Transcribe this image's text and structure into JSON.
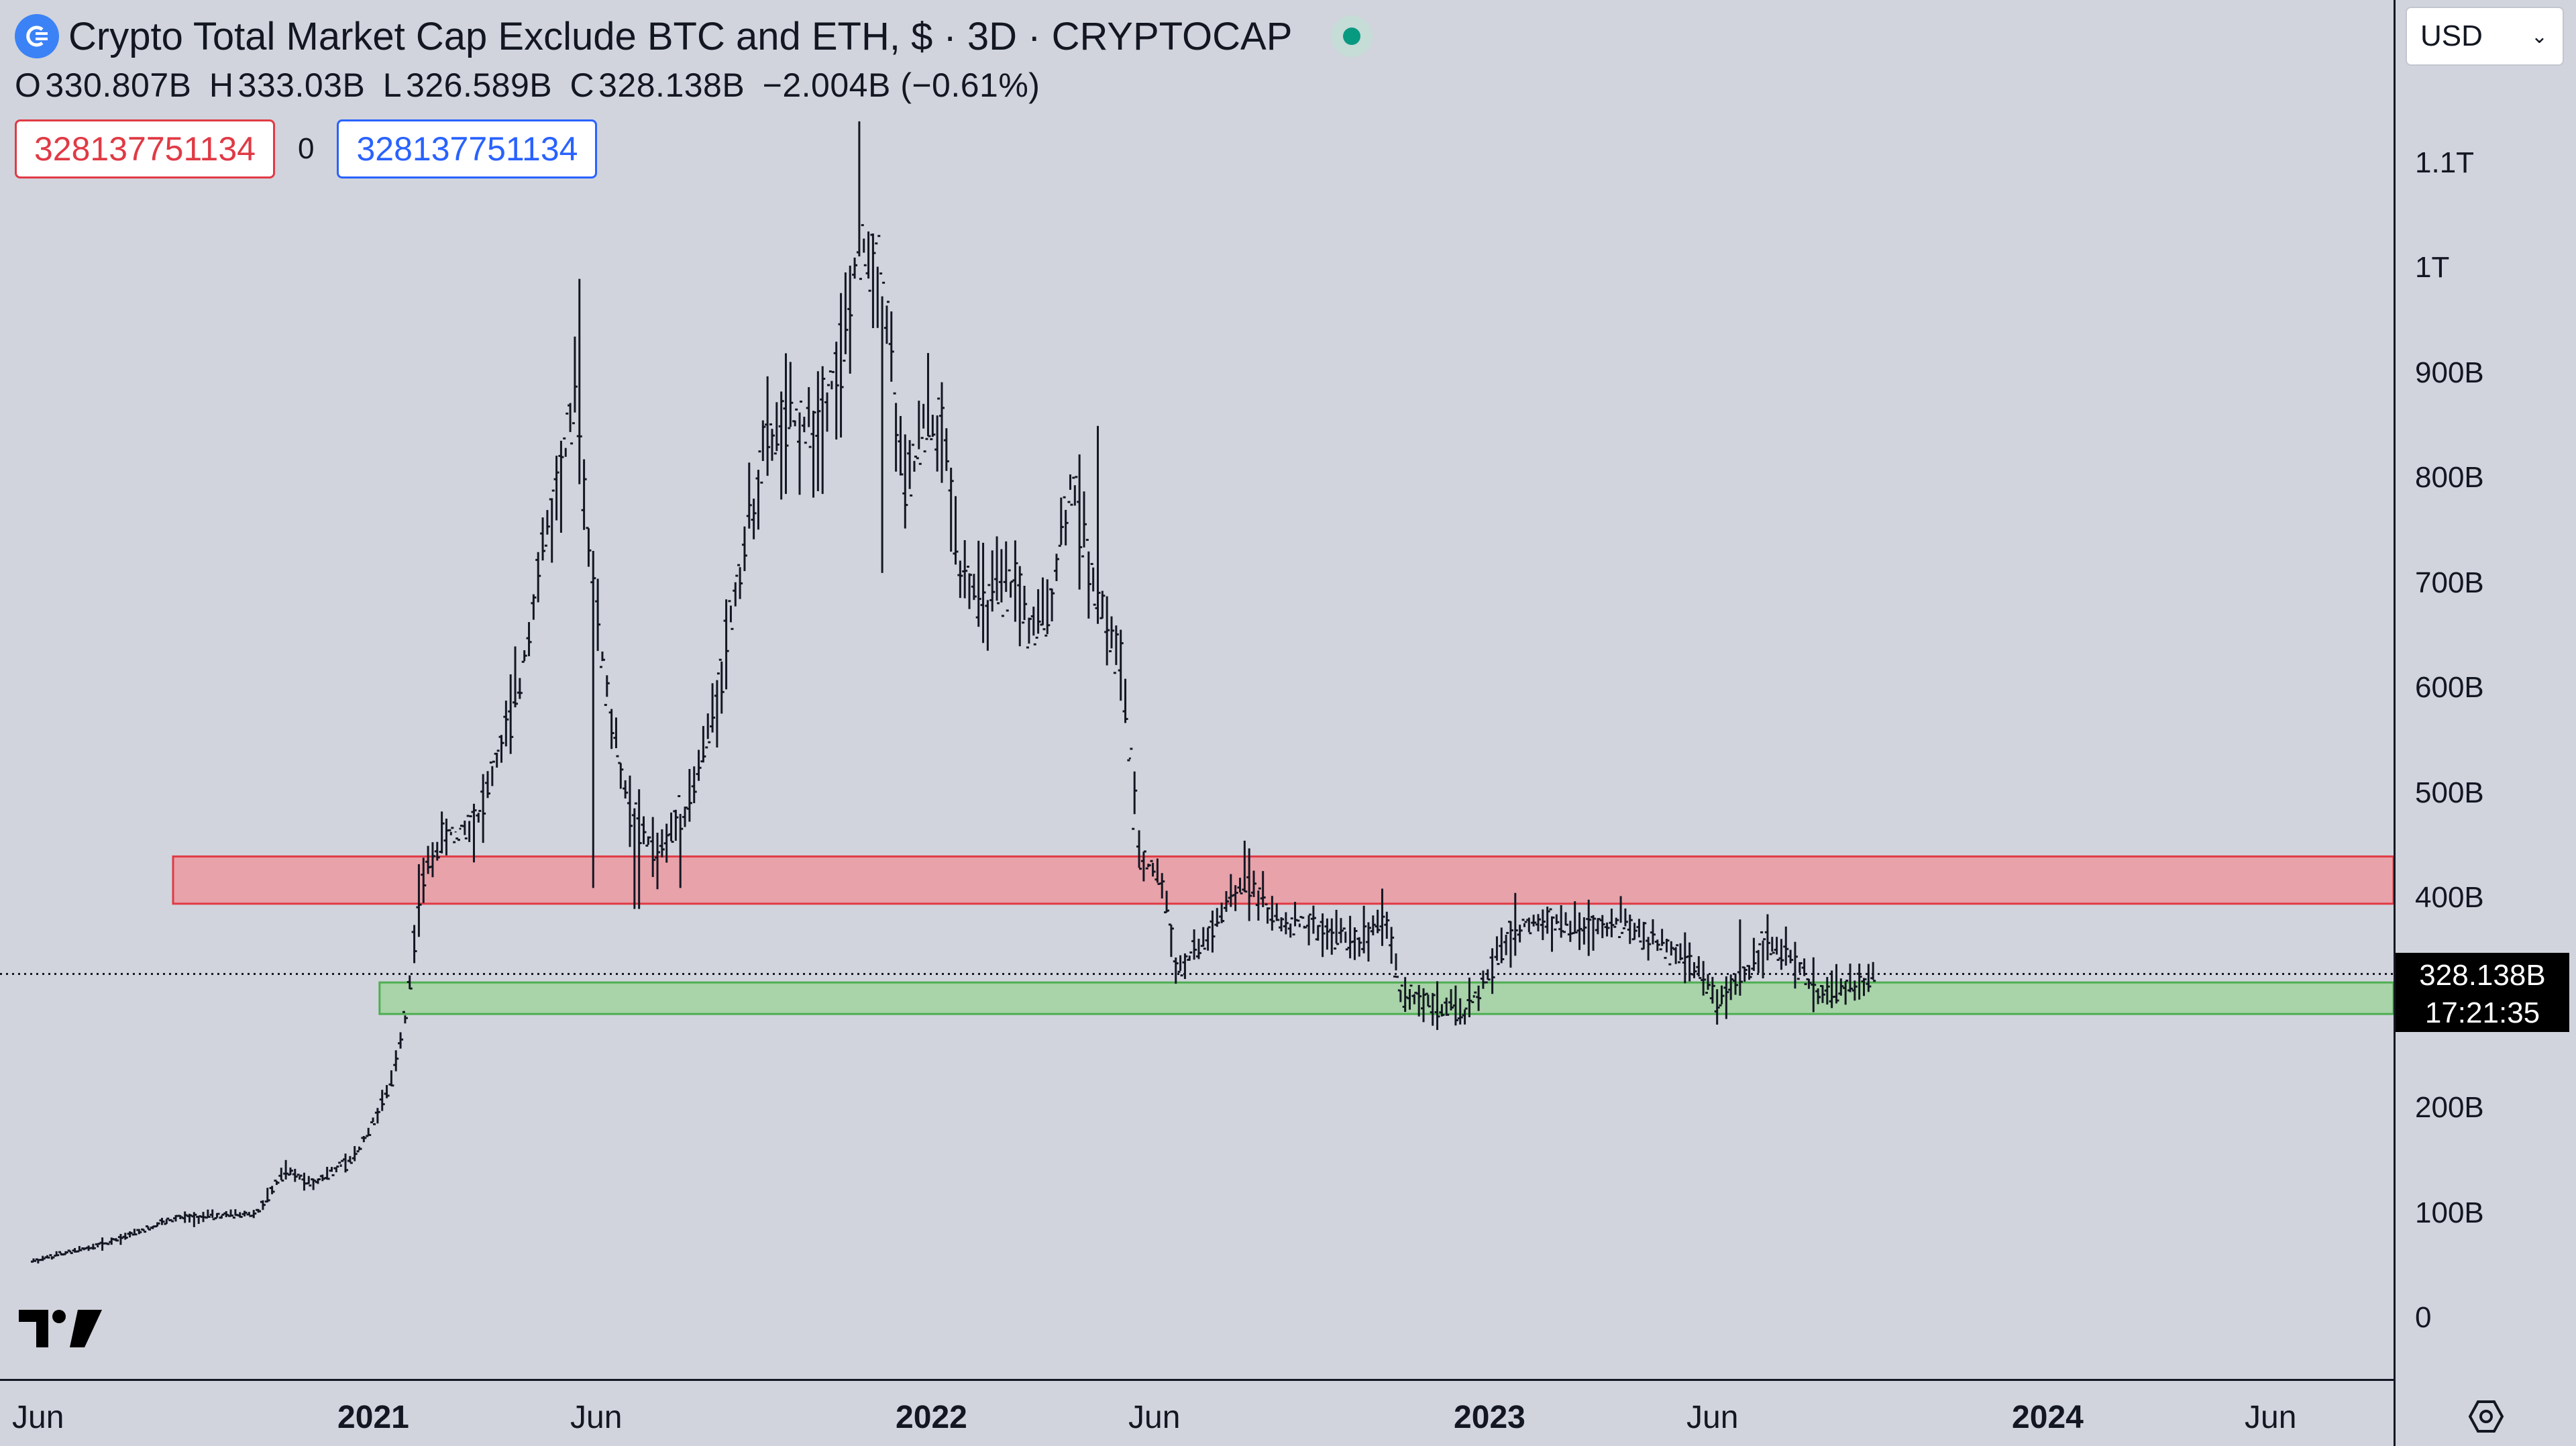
{
  "header": {
    "title": "Crypto Total Market Cap Exclude BTC and ETH, $ · 3D · CRYPTOCAP",
    "ohlc": [
      {
        "key": "O",
        "value": "330.807B"
      },
      {
        "key": "H",
        "value": "333.03B"
      },
      {
        "key": "L",
        "value": "326.589B"
      },
      {
        "key": "C",
        "value": "328.138B"
      }
    ],
    "change": "−2.004B (−0.61%)",
    "input_left": "328137751134",
    "input_sep": "0",
    "input_right": "328137751134"
  },
  "currency": {
    "selected": "USD"
  },
  "price_tag": {
    "price": "328.138B",
    "countdown": "17:21:35"
  },
  "colors": {
    "background": "#d1d4dc",
    "resistance_zone": "#e8a2aa",
    "support_zone": "#a9d3a9",
    "candle": "#131722",
    "accent_red": "#e03a45",
    "accent_blue": "#2962ff"
  },
  "icons": {
    "logo": "crypto-cap-icon",
    "brand": "tradingview-logo",
    "settings": "settings-icon"
  },
  "chart_data": {
    "type": "candlestick",
    "ylim": [
      0,
      1.12
    ],
    "yunit": "T",
    "y_ticks": [
      {
        "v": 0,
        "label": "0"
      },
      {
        "v": 0.1,
        "label": "100B"
      },
      {
        "v": 0.2,
        "label": "200B"
      },
      {
        "v": 0.3,
        "label": ""
      },
      {
        "v": 0.4,
        "label": "400B"
      },
      {
        "v": 0.5,
        "label": "500B"
      },
      {
        "v": 0.6,
        "label": "600B"
      },
      {
        "v": 0.7,
        "label": "700B"
      },
      {
        "v": 0.8,
        "label": "800B"
      },
      {
        "v": 0.9,
        "label": "900B"
      },
      {
        "v": 1.0,
        "label": "1T"
      },
      {
        "v": 1.1,
        "label": "1.1T"
      }
    ],
    "x_ticks": [
      {
        "t": 0.0,
        "label": "Jun",
        "bold": false
      },
      {
        "t": 0.583,
        "label": "2021",
        "bold": true
      },
      {
        "t": 1.0,
        "label": "Jun",
        "bold": false
      },
      {
        "t": 1.583,
        "label": "2022",
        "bold": true
      },
      {
        "t": 2.0,
        "label": "Jun",
        "bold": false
      },
      {
        "t": 2.583,
        "label": "2023",
        "bold": true
      },
      {
        "t": 3.0,
        "label": "Jun",
        "bold": false
      },
      {
        "t": 3.583,
        "label": "2024",
        "bold": true
      },
      {
        "t": 4.0,
        "label": "Jun",
        "bold": false
      }
    ],
    "resistance_zone": {
      "from": 0.395,
      "to": 0.44,
      "start_t": 0.25
    },
    "support_zone": {
      "from": 0.29,
      "to": 0.32,
      "start_t": 0.62
    },
    "last_price": 0.328138,
    "path": [
      [
        0.0,
        0.055
      ],
      [
        0.12,
        0.07
      ],
      [
        0.25,
        0.095
      ],
      [
        0.4,
        0.1
      ],
      [
        0.45,
        0.14
      ],
      [
        0.5,
        0.13
      ],
      [
        0.57,
        0.15
      ],
      [
        0.64,
        0.22
      ],
      [
        0.67,
        0.3
      ],
      [
        0.69,
        0.4
      ],
      [
        0.72,
        0.45
      ],
      [
        0.8,
        0.48
      ],
      [
        0.87,
        0.6
      ],
      [
        0.9,
        0.7
      ],
      [
        0.95,
        0.82
      ],
      [
        0.97,
        0.87
      ],
      [
        1.0,
        0.72
      ],
      [
        1.03,
        0.58
      ],
      [
        1.07,
        0.48
      ],
      [
        1.12,
        0.44
      ],
      [
        1.18,
        0.5
      ],
      [
        1.22,
        0.58
      ],
      [
        1.26,
        0.7
      ],
      [
        1.31,
        0.83
      ],
      [
        1.35,
        0.85
      ],
      [
        1.4,
        0.85
      ],
      [
        1.45,
        0.92
      ],
      [
        1.48,
        1.02
      ],
      [
        1.5,
        1.02
      ],
      [
        1.53,
        0.95
      ],
      [
        1.56,
        0.78
      ],
      [
        1.6,
        0.86
      ],
      [
        1.63,
        0.84
      ],
      [
        1.66,
        0.72
      ],
      [
        1.7,
        0.68
      ],
      [
        1.76,
        0.7
      ],
      [
        1.79,
        0.65
      ],
      [
        1.82,
        0.68
      ],
      [
        1.86,
        0.8
      ],
      [
        1.9,
        0.7
      ],
      [
        1.95,
        0.62
      ],
      [
        1.98,
        0.44
      ],
      [
        2.02,
        0.42
      ],
      [
        2.05,
        0.33
      ],
      [
        2.1,
        0.36
      ],
      [
        2.15,
        0.4
      ],
      [
        2.18,
        0.42
      ],
      [
        2.22,
        0.38
      ],
      [
        2.3,
        0.37
      ],
      [
        2.38,
        0.36
      ],
      [
        2.42,
        0.39
      ],
      [
        2.45,
        0.31
      ],
      [
        2.5,
        0.3
      ],
      [
        2.56,
        0.29
      ],
      [
        2.6,
        0.32
      ],
      [
        2.65,
        0.37
      ],
      [
        2.72,
        0.38
      ],
      [
        2.77,
        0.37
      ],
      [
        2.84,
        0.38
      ],
      [
        2.9,
        0.36
      ],
      [
        2.97,
        0.34
      ],
      [
        3.02,
        0.3
      ],
      [
        3.07,
        0.33
      ],
      [
        3.1,
        0.36
      ],
      [
        3.15,
        0.34
      ],
      [
        3.2,
        0.31
      ],
      [
        3.25,
        0.315
      ],
      [
        3.3,
        0.325
      ]
    ],
    "spikes": [
      [
        0.975,
        0.99
      ],
      [
        1.0,
        0.41
      ],
      [
        1.08,
        0.39
      ],
      [
        1.16,
        0.41
      ],
      [
        1.48,
        1.14
      ],
      [
        1.52,
        0.71
      ],
      [
        1.62,
        0.86
      ],
      [
        1.91,
        0.85
      ],
      [
        2.02,
        0.4
      ],
      [
        2.17,
        0.455
      ],
      [
        2.56,
        0.28
      ],
      [
        3.06,
        0.38
      ]
    ]
  }
}
